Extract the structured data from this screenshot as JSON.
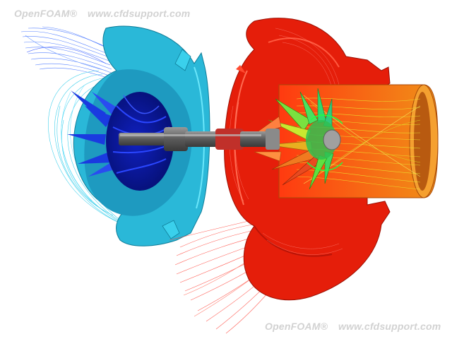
{
  "watermarks": {
    "brand": "OpenFOAM®",
    "site": "www.cfdsupport.com"
  },
  "palette": {
    "background": "#ffffff",
    "compressor_housing": "#29b8d8",
    "compressor_wheel": "#0b1fa8",
    "turbine_housing": "#e81e0a",
    "turbine_outlet": "#f07a10",
    "shaft": "#6a6a6a",
    "streamline_cold": "#2a4cff",
    "streamline_warm": "#e8e820",
    "watermark": "#d2d2d2"
  }
}
